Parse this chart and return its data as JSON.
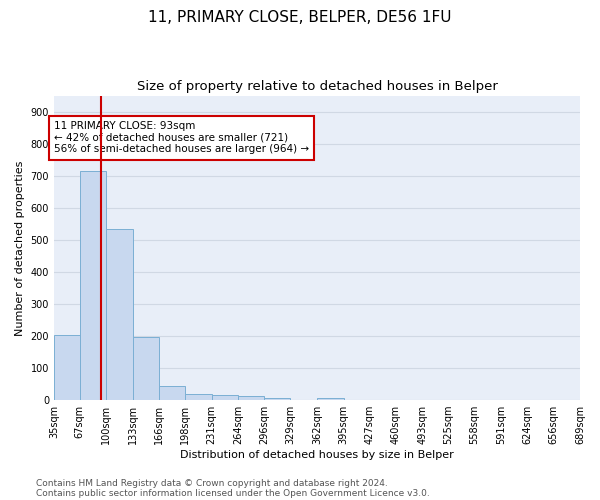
{
  "title": "11, PRIMARY CLOSE, BELPER, DE56 1FU",
  "subtitle": "Size of property relative to detached houses in Belper",
  "xlabel": "Distribution of detached houses by size in Belper",
  "ylabel": "Number of detached properties",
  "footnote1": "Contains HM Land Registry data © Crown copyright and database right 2024.",
  "footnote2": "Contains public sector information licensed under the Open Government Licence v3.0.",
  "annotation_line1": "11 PRIMARY CLOSE: 93sqm",
  "annotation_line2": "← 42% of detached houses are smaller (721)",
  "annotation_line3": "56% of semi-detached houses are larger (964) →",
  "property_sqm": 93,
  "bar_left_edges": [
    35,
    67,
    100,
    133,
    166,
    198,
    231,
    264,
    296,
    329,
    362,
    395,
    427,
    460,
    493,
    525,
    558,
    591,
    624,
    656
  ],
  "bar_widths": [
    32,
    33,
    33,
    33,
    32,
    33,
    33,
    32,
    33,
    33,
    33,
    32,
    33,
    33,
    33,
    33,
    33,
    33,
    32,
    33
  ],
  "bar_heights": [
    204,
    714,
    534,
    196,
    43,
    20,
    15,
    14,
    8,
    0,
    8,
    0,
    0,
    0,
    0,
    0,
    0,
    0,
    0,
    0
  ],
  "tick_labels": [
    "35sqm",
    "67sqm",
    "100sqm",
    "133sqm",
    "166sqm",
    "198sqm",
    "231sqm",
    "264sqm",
    "296sqm",
    "329sqm",
    "362sqm",
    "395sqm",
    "427sqm",
    "460sqm",
    "493sqm",
    "525sqm",
    "558sqm",
    "591sqm",
    "624sqm",
    "656sqm",
    "689sqm"
  ],
  "bar_color": "#c8d8ef",
  "bar_edgecolor": "#7bafd4",
  "redline_color": "#cc0000",
  "annotation_box_edgecolor": "#cc0000",
  "ylim": [
    0,
    950
  ],
  "yticks": [
    0,
    100,
    200,
    300,
    400,
    500,
    600,
    700,
    800,
    900
  ],
  "grid_color": "#d0d8e4",
  "bg_color": "#e8eef8",
  "title_fontsize": 11,
  "subtitle_fontsize": 9.5,
  "footnote_fontsize": 6.5,
  "axis_label_fontsize": 8,
  "tick_fontsize": 7,
  "annotation_fontsize": 7.5
}
